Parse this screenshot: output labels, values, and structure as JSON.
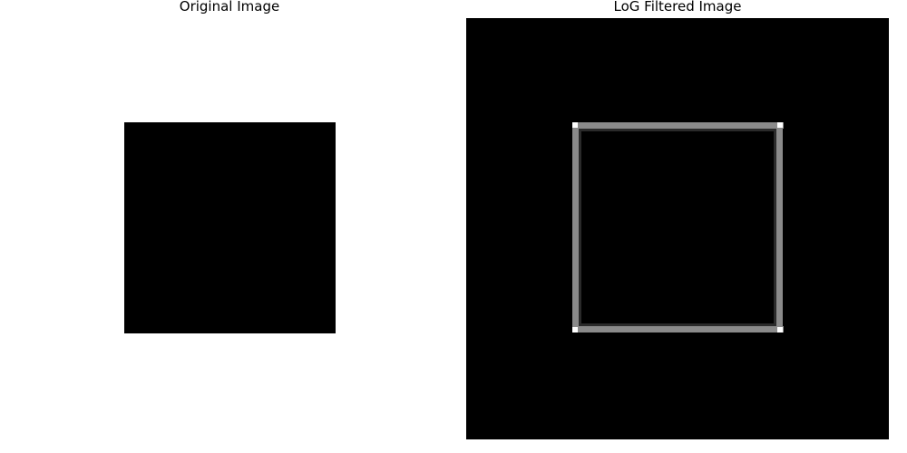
{
  "panels": {
    "left": {
      "title": "Original Image"
    },
    "right": {
      "title": "LoG Filtered Image"
    }
  },
  "colors": {
    "background": "#ffffff",
    "square": "#000000",
    "filtered_background": "#000000",
    "edge": "#8a8a8a",
    "corner_highlight": "#ffffff"
  }
}
